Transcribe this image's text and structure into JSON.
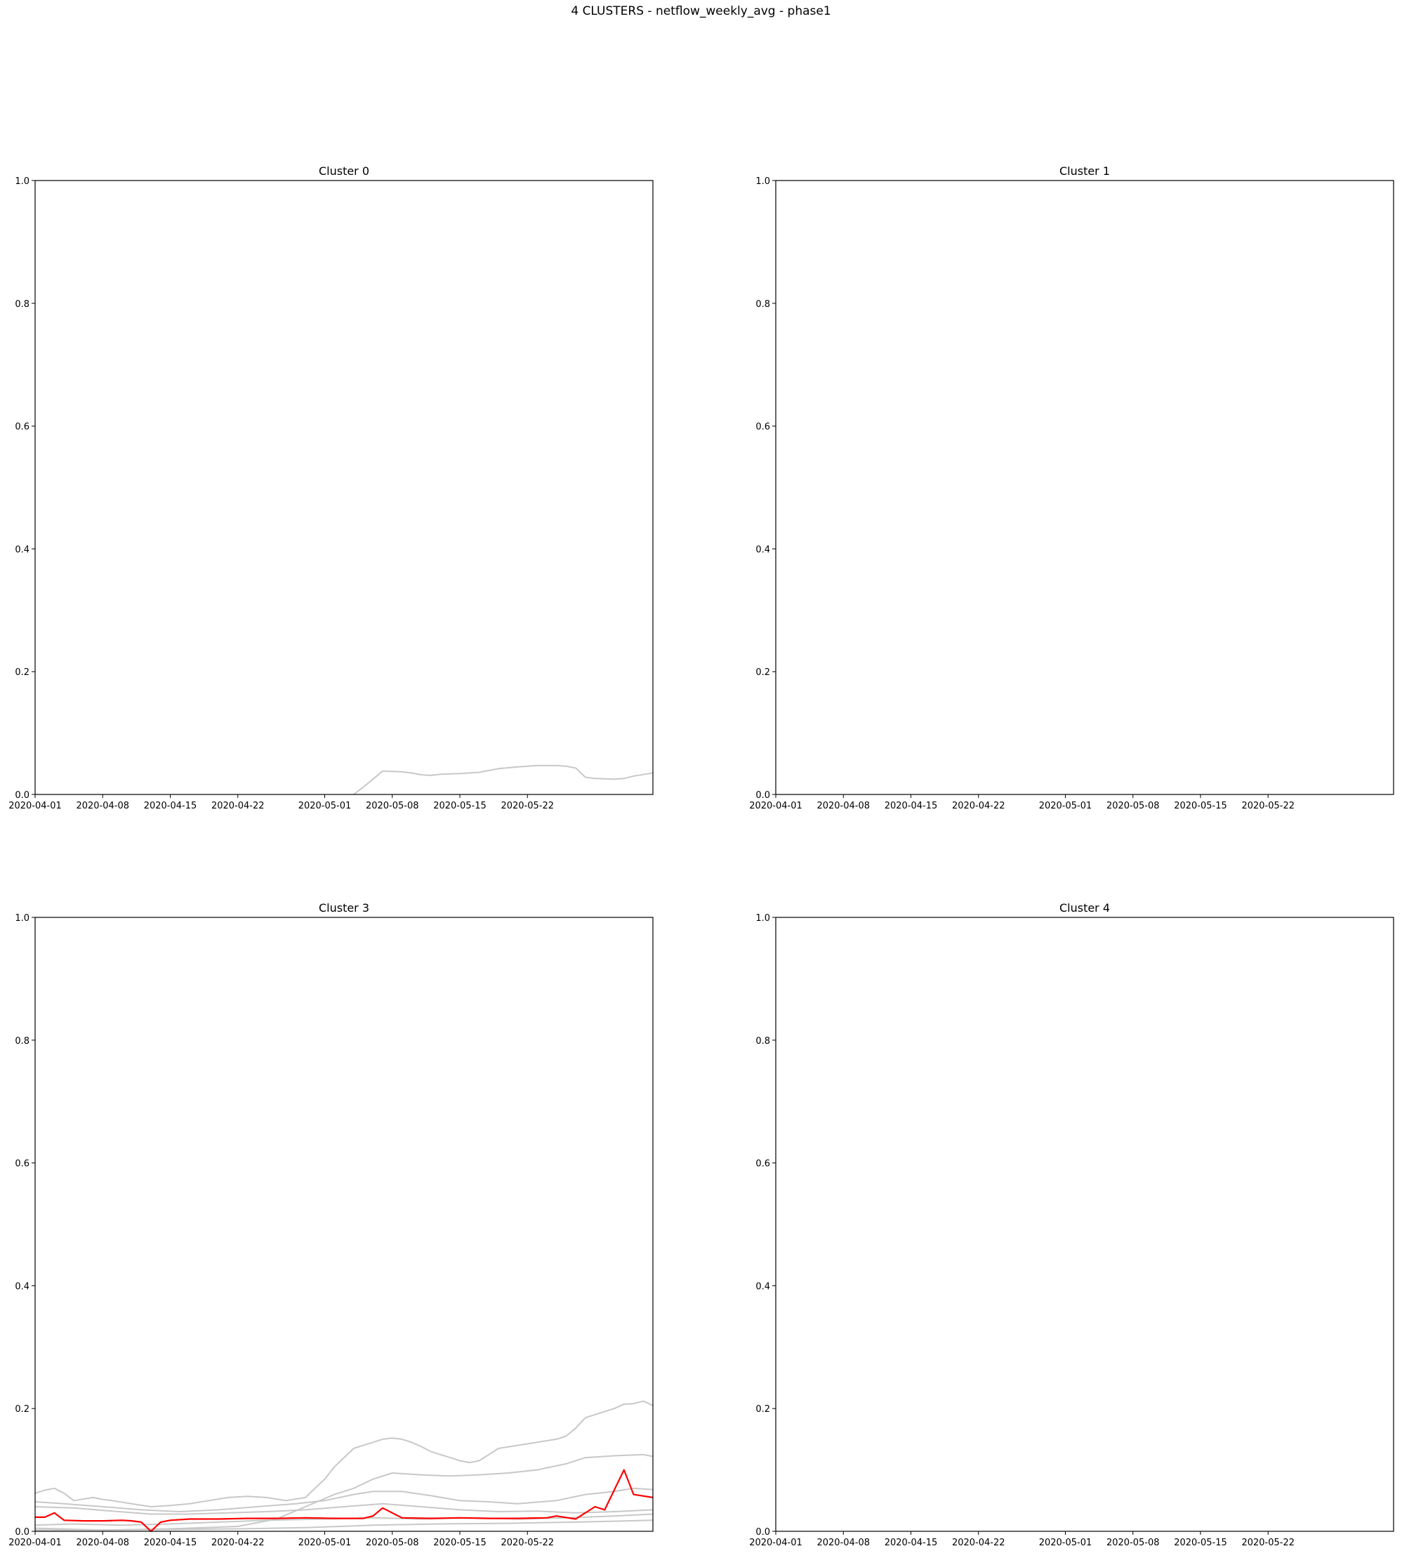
{
  "figure": {
    "suptitle": "4 CLUSTERS - netflow_weekly_avg - phase1"
  },
  "chart_data": [
    {
      "type": "line",
      "title": "Cluster 0",
      "xlabel": "",
      "ylabel": "",
      "xlim": [
        "2020-04-01",
        "2020-06-04"
      ],
      "ylim": [
        0,
        1
      ],
      "xticks": [
        "2020-04-01",
        "2020-04-08",
        "2020-04-15",
        "2020-04-22",
        "2020-05-01",
        "2020-05-08",
        "2020-05-15",
        "2020-05-22"
      ],
      "yticks": [
        "0.0",
        "0.2",
        "0.4",
        "0.6",
        "0.8",
        "1.0"
      ],
      "grid": false,
      "series": [
        {
          "color": "#c8c8c8",
          "points": [
            [
              "2020-05-04",
              0.0
            ],
            [
              "2020-05-05",
              0.012
            ],
            [
              "2020-05-06",
              0.025
            ],
            [
              "2020-05-07",
              0.038
            ],
            [
              "2020-05-09",
              0.037
            ],
            [
              "2020-05-10",
              0.035
            ],
            [
              "2020-05-11",
              0.032
            ],
            [
              "2020-05-12",
              0.031
            ],
            [
              "2020-05-13",
              0.033
            ],
            [
              "2020-05-15",
              0.034
            ],
            [
              "2020-05-17",
              0.036
            ],
            [
              "2020-05-19",
              0.042
            ],
            [
              "2020-05-21",
              0.045
            ],
            [
              "2020-05-23",
              0.047
            ],
            [
              "2020-05-25",
              0.047
            ],
            [
              "2020-05-26",
              0.046
            ],
            [
              "2020-05-27",
              0.043
            ],
            [
              "2020-05-28",
              0.028
            ],
            [
              "2020-05-29",
              0.026
            ],
            [
              "2020-05-31",
              0.025
            ],
            [
              "2020-06-01",
              0.026
            ],
            [
              "2020-06-02",
              0.03
            ],
            [
              "2020-06-04",
              0.035
            ]
          ]
        }
      ]
    },
    {
      "type": "line",
      "title": "Cluster 1",
      "xlabel": "",
      "ylabel": "",
      "xlim": [
        "2020-04-01",
        "2020-06-04"
      ],
      "ylim": [
        0,
        1
      ],
      "xticks": [
        "2020-04-01",
        "2020-04-08",
        "2020-04-15",
        "2020-04-22",
        "2020-05-01",
        "2020-05-08",
        "2020-05-15",
        "2020-05-22"
      ],
      "yticks": [
        "0.0",
        "0.2",
        "0.4",
        "0.6",
        "0.8",
        "1.0"
      ],
      "grid": false,
      "series": []
    },
    {
      "type": "line",
      "title": "Cluster 3",
      "xlabel": "",
      "ylabel": "",
      "xlim": [
        "2020-04-01",
        "2020-06-04"
      ],
      "ylim": [
        0,
        1
      ],
      "xticks": [
        "2020-04-01",
        "2020-04-08",
        "2020-04-15",
        "2020-04-22",
        "2020-05-01",
        "2020-05-08",
        "2020-05-15",
        "2020-05-22"
      ],
      "yticks": [
        "0.0",
        "0.2",
        "0.4",
        "0.6",
        "0.8",
        "1.0"
      ],
      "grid": false,
      "series": [
        {
          "color": "#c8c8c8",
          "points": [
            [
              "2020-04-01",
              0.062
            ],
            [
              "2020-04-02",
              0.067
            ],
            [
              "2020-04-03",
              0.07
            ],
            [
              "2020-04-04",
              0.062
            ],
            [
              "2020-04-05",
              0.05
            ],
            [
              "2020-04-07",
              0.055
            ],
            [
              "2020-04-08",
              0.052
            ],
            [
              "2020-04-09",
              0.05
            ],
            [
              "2020-04-11",
              0.045
            ],
            [
              "2020-04-13",
              0.04
            ],
            [
              "2020-04-15",
              0.042
            ],
            [
              "2020-04-17",
              0.045
            ],
            [
              "2020-04-19",
              0.05
            ],
            [
              "2020-04-21",
              0.055
            ],
            [
              "2020-04-23",
              0.057
            ],
            [
              "2020-04-25",
              0.055
            ],
            [
              "2020-04-27",
              0.05
            ],
            [
              "2020-04-29",
              0.055
            ],
            [
              "2020-05-01",
              0.085
            ],
            [
              "2020-05-02",
              0.105
            ],
            [
              "2020-05-03",
              0.12
            ],
            [
              "2020-05-04",
              0.135
            ],
            [
              "2020-05-05",
              0.14
            ],
            [
              "2020-05-06",
              0.145
            ],
            [
              "2020-05-07",
              0.15
            ],
            [
              "2020-05-08",
              0.152
            ],
            [
              "2020-05-09",
              0.15
            ],
            [
              "2020-05-10",
              0.145
            ],
            [
              "2020-05-11",
              0.138
            ],
            [
              "2020-05-12",
              0.13
            ],
            [
              "2020-05-13",
              0.125
            ],
            [
              "2020-05-14",
              0.12
            ],
            [
              "2020-05-15",
              0.115
            ],
            [
              "2020-05-16",
              0.112
            ],
            [
              "2020-05-17",
              0.115
            ],
            [
              "2020-05-18",
              0.125
            ],
            [
              "2020-05-19",
              0.135
            ],
            [
              "2020-05-21",
              0.14
            ],
            [
              "2020-05-23",
              0.145
            ],
            [
              "2020-05-25",
              0.15
            ],
            [
              "2020-05-26",
              0.155
            ],
            [
              "2020-05-27",
              0.168
            ],
            [
              "2020-05-28",
              0.185
            ],
            [
              "2020-05-29",
              0.19
            ],
            [
              "2020-05-31",
              0.2
            ],
            [
              "2020-06-01",
              0.207
            ],
            [
              "2020-06-02",
              0.208
            ],
            [
              "2020-06-03",
              0.212
            ],
            [
              "2020-06-04",
              0.205
            ]
          ]
        },
        {
          "color": "#c8c8c8",
          "points": [
            [
              "2020-04-01",
              0.005
            ],
            [
              "2020-04-08",
              0.002
            ],
            [
              "2020-04-15",
              0.004
            ],
            [
              "2020-04-22",
              0.008
            ],
            [
              "2020-04-26",
              0.02
            ],
            [
              "2020-04-29",
              0.04
            ],
            [
              "2020-05-02",
              0.06
            ],
            [
              "2020-05-04",
              0.07
            ],
            [
              "2020-05-06",
              0.085
            ],
            [
              "2020-05-08",
              0.095
            ],
            [
              "2020-05-11",
              0.092
            ],
            [
              "2020-05-14",
              0.09
            ],
            [
              "2020-05-17",
              0.092
            ],
            [
              "2020-05-20",
              0.095
            ],
            [
              "2020-05-23",
              0.1
            ],
            [
              "2020-05-26",
              0.11
            ],
            [
              "2020-05-28",
              0.12
            ],
            [
              "2020-05-31",
              0.123
            ],
            [
              "2020-06-03",
              0.125
            ],
            [
              "2020-06-04",
              0.122
            ]
          ]
        },
        {
          "color": "#c8c8c8",
          "points": [
            [
              "2020-04-01",
              0.048
            ],
            [
              "2020-04-04",
              0.045
            ],
            [
              "2020-04-08",
              0.04
            ],
            [
              "2020-04-12",
              0.035
            ],
            [
              "2020-04-16",
              0.032
            ],
            [
              "2020-04-20",
              0.035
            ],
            [
              "2020-04-24",
              0.04
            ],
            [
              "2020-04-28",
              0.045
            ],
            [
              "2020-05-01",
              0.05
            ],
            [
              "2020-05-04",
              0.06
            ],
            [
              "2020-05-06",
              0.065
            ],
            [
              "2020-05-09",
              0.065
            ],
            [
              "2020-05-12",
              0.058
            ],
            [
              "2020-05-15",
              0.05
            ],
            [
              "2020-05-18",
              0.048
            ],
            [
              "2020-05-21",
              0.045
            ],
            [
              "2020-05-25",
              0.05
            ],
            [
              "2020-05-28",
              0.06
            ],
            [
              "2020-05-31",
              0.065
            ],
            [
              "2020-06-02",
              0.07
            ],
            [
              "2020-06-04",
              0.068
            ]
          ]
        },
        {
          "color": "#c8c8c8",
          "points": [
            [
              "2020-04-01",
              0.04
            ],
            [
              "2020-04-05",
              0.038
            ],
            [
              "2020-04-09",
              0.033
            ],
            [
              "2020-04-13",
              0.028
            ],
            [
              "2020-04-17",
              0.028
            ],
            [
              "2020-04-21",
              0.03
            ],
            [
              "2020-04-25",
              0.032
            ],
            [
              "2020-04-29",
              0.035
            ],
            [
              "2020-05-03",
              0.04
            ],
            [
              "2020-05-07",
              0.045
            ],
            [
              "2020-05-11",
              0.04
            ],
            [
              "2020-05-15",
              0.035
            ],
            [
              "2020-05-19",
              0.032
            ],
            [
              "2020-05-23",
              0.033
            ],
            [
              "2020-05-27",
              0.03
            ],
            [
              "2020-05-31",
              0.032
            ],
            [
              "2020-06-04",
              0.035
            ]
          ]
        },
        {
          "color": "#c8c8c8",
          "points": [
            [
              "2020-04-01",
              0.01
            ],
            [
              "2020-04-05",
              0.012
            ],
            [
              "2020-04-10",
              0.01
            ],
            [
              "2020-04-15",
              0.012
            ],
            [
              "2020-04-20",
              0.015
            ],
            [
              "2020-04-25",
              0.018
            ],
            [
              "2020-05-01",
              0.02
            ],
            [
              "2020-05-06",
              0.022
            ],
            [
              "2020-05-11",
              0.02
            ],
            [
              "2020-05-16",
              0.022
            ],
            [
              "2020-05-21",
              0.02
            ],
            [
              "2020-05-26",
              0.022
            ],
            [
              "2020-05-31",
              0.025
            ],
            [
              "2020-06-04",
              0.028
            ]
          ]
        },
        {
          "color": "#c8c8c8",
          "points": [
            [
              "2020-04-01",
              0.002
            ],
            [
              "2020-04-08",
              0.002
            ],
            [
              "2020-04-15",
              0.003
            ],
            [
              "2020-04-22",
              0.004
            ],
            [
              "2020-04-29",
              0.006
            ],
            [
              "2020-05-06",
              0.01
            ],
            [
              "2020-05-13",
              0.012
            ],
            [
              "2020-05-20",
              0.013
            ],
            [
              "2020-05-27",
              0.015
            ],
            [
              "2020-06-04",
              0.018
            ]
          ]
        },
        {
          "color": "#ff0000",
          "points": [
            [
              "2020-04-01",
              0.023
            ],
            [
              "2020-04-02",
              0.023
            ],
            [
              "2020-04-03",
              0.03
            ],
            [
              "2020-04-04",
              0.018
            ],
            [
              "2020-04-06",
              0.017
            ],
            [
              "2020-04-08",
              0.017
            ],
            [
              "2020-04-10",
              0.018
            ],
            [
              "2020-04-11",
              0.017
            ],
            [
              "2020-04-12",
              0.015
            ],
            [
              "2020-04-13",
              0.0
            ],
            [
              "2020-04-14",
              0.015
            ],
            [
              "2020-04-15",
              0.018
            ],
            [
              "2020-04-17",
              0.02
            ],
            [
              "2020-04-20",
              0.02
            ],
            [
              "2020-04-23",
              0.021
            ],
            [
              "2020-04-26",
              0.021
            ],
            [
              "2020-04-29",
              0.022
            ],
            [
              "2020-05-02",
              0.021
            ],
            [
              "2020-05-05",
              0.021
            ],
            [
              "2020-05-06",
              0.025
            ],
            [
              "2020-05-07",
              0.038
            ],
            [
              "2020-05-08",
              0.03
            ],
            [
              "2020-05-09",
              0.022
            ],
            [
              "2020-05-12",
              0.021
            ],
            [
              "2020-05-15",
              0.022
            ],
            [
              "2020-05-18",
              0.021
            ],
            [
              "2020-05-21",
              0.021
            ],
            [
              "2020-05-24",
              0.022
            ],
            [
              "2020-05-25",
              0.025
            ],
            [
              "2020-05-27",
              0.02
            ],
            [
              "2020-05-29",
              0.04
            ],
            [
              "2020-05-30",
              0.035
            ],
            [
              "2020-06-01",
              0.1
            ],
            [
              "2020-06-02",
              0.06
            ],
            [
              "2020-06-04",
              0.055
            ]
          ]
        }
      ]
    },
    {
      "type": "line",
      "title": "Cluster 4",
      "xlabel": "",
      "ylabel": "",
      "xlim": [
        "2020-04-01",
        "2020-06-04"
      ],
      "ylim": [
        0,
        1
      ],
      "xticks": [
        "2020-04-01",
        "2020-04-08",
        "2020-04-15",
        "2020-04-22",
        "2020-05-01",
        "2020-05-08",
        "2020-05-15",
        "2020-05-22"
      ],
      "yticks": [
        "0.0",
        "0.2",
        "0.4",
        "0.6",
        "0.8",
        "1.0"
      ],
      "grid": false,
      "series": []
    }
  ]
}
